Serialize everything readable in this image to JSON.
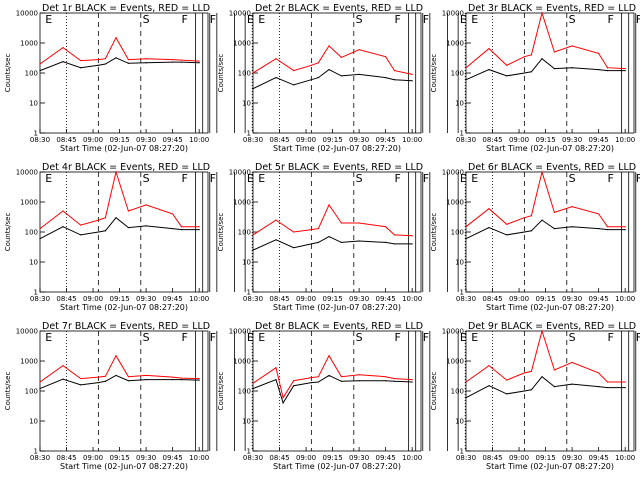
{
  "chart_data": [
    {
      "type": "line",
      "title": "Det 1r BLACK = Events, RED = LLD",
      "xlabel": "Start Time (02-Jun-07 08:27:20)",
      "ylabel": "Counts/sec",
      "x_tick_labels": [
        "08:30",
        "08:45",
        "09:00",
        "09:15",
        "09:30",
        "09:45",
        "10:00"
      ],
      "y_tick_labels": [
        "1",
        "10",
        "100",
        "1000",
        "10000"
      ],
      "ylim": [
        1,
        10000
      ],
      "y_scale": "log",
      "markers": [
        "E",
        "S",
        "F",
        "F",
        "E"
      ],
      "series": [
        {
          "name": "Events",
          "color": "#000000",
          "x": [
            "08:30",
            "08:43",
            "08:53",
            "09:03",
            "09:07",
            "09:13",
            "09:20",
            "09:30",
            "09:45",
            "09:50",
            "10:00"
          ],
          "y": [
            120,
            240,
            150,
            180,
            200,
            320,
            210,
            220,
            230,
            230,
            220
          ]
        },
        {
          "name": "LLD",
          "color": "#ff0000",
          "x": [
            "08:30",
            "08:43",
            "08:53",
            "09:03",
            "09:07",
            "09:13",
            "09:20",
            "09:30",
            "09:45",
            "09:50",
            "10:00"
          ],
          "y": [
            200,
            700,
            260,
            280,
            300,
            1500,
            280,
            300,
            280,
            270,
            250
          ]
        }
      ]
    },
    {
      "type": "line",
      "title": "Det 2r BLACK = Events, RED = LLD",
      "xlabel": "Start Time (02-Jun-07 08:27:20)",
      "ylabel": "Counts/sec",
      "x_tick_labels": [
        "08:30",
        "08:45",
        "09:00",
        "09:15",
        "09:30",
        "09:45",
        "10:00"
      ],
      "y_tick_labels": [
        "1",
        "10",
        "100",
        "1000",
        "10000"
      ],
      "ylim": [
        1,
        10000
      ],
      "y_scale": "log",
      "markers": [
        "E",
        "S",
        "F",
        "F",
        "E"
      ],
      "series": [
        {
          "name": "Events",
          "color": "#000000",
          "x": [
            "08:30",
            "08:43",
            "08:53",
            "09:03",
            "09:07",
            "09:13",
            "09:20",
            "09:30",
            "09:45",
            "09:50",
            "10:00"
          ],
          "y": [
            30,
            70,
            40,
            60,
            70,
            130,
            80,
            90,
            70,
            60,
            55
          ]
        },
        {
          "name": "LLD",
          "color": "#ff0000",
          "x": [
            "08:30",
            "08:43",
            "08:53",
            "09:03",
            "09:07",
            "09:13",
            "09:20",
            "09:30",
            "09:45",
            "09:50",
            "10:00"
          ],
          "y": [
            100,
            300,
            120,
            180,
            220,
            800,
            330,
            600,
            350,
            120,
            90
          ]
        }
      ]
    },
    {
      "type": "line",
      "title": "Det 3r BLACK = Events, RED = LLD",
      "xlabel": "Start Time (02-Jun-07 08:27:20)",
      "ylabel": "Counts/sec",
      "x_tick_labels": [
        "08:30",
        "08:45",
        "09:00",
        "09:15",
        "09:30",
        "09:45",
        "10:00"
      ],
      "y_tick_labels": [
        "1",
        "10",
        "100",
        "1000",
        "10000"
      ],
      "ylim": [
        1,
        10000
      ],
      "y_scale": "log",
      "markers": [
        "E",
        "S",
        "F",
        "F",
        "E"
      ],
      "series": [
        {
          "name": "Events",
          "color": "#000000",
          "x": [
            "08:30",
            "08:43",
            "08:53",
            "09:03",
            "09:07",
            "09:13",
            "09:20",
            "09:30",
            "09:45",
            "09:50",
            "10:00"
          ],
          "y": [
            60,
            130,
            80,
            100,
            110,
            300,
            140,
            150,
            130,
            120,
            120
          ]
        },
        {
          "name": "LLD",
          "color": "#ff0000",
          "x": [
            "08:30",
            "08:43",
            "08:53",
            "09:03",
            "09:07",
            "09:13",
            "09:20",
            "09:30",
            "09:45",
            "09:50",
            "10:00"
          ],
          "y": [
            150,
            650,
            180,
            350,
            400,
            10000,
            500,
            800,
            450,
            150,
            140
          ]
        }
      ]
    },
    {
      "type": "line",
      "title": "Det 4r BLACK = Events, RED = LLD",
      "xlabel": "Start Time (02-Jun-07 08:27:20)",
      "ylabel": "Counts/sec",
      "x_tick_labels": [
        "08:30",
        "08:45",
        "09:00",
        "09:15",
        "09:30",
        "09:45",
        "10:00"
      ],
      "y_tick_labels": [
        "1",
        "10",
        "100",
        "1000",
        "10000"
      ],
      "ylim": [
        1,
        10000
      ],
      "y_scale": "log",
      "markers": [
        "E",
        "S",
        "F",
        "F",
        "E"
      ],
      "series": [
        {
          "name": "Events",
          "color": "#000000",
          "x": [
            "08:30",
            "08:43",
            "08:53",
            "09:03",
            "09:07",
            "09:13",
            "09:20",
            "09:30",
            "09:45",
            "09:50",
            "10:00"
          ],
          "y": [
            60,
            150,
            80,
            100,
            110,
            300,
            140,
            160,
            130,
            120,
            120
          ]
        },
        {
          "name": "LLD",
          "color": "#ff0000",
          "x": [
            "08:30",
            "08:43",
            "08:53",
            "09:03",
            "09:07",
            "09:13",
            "09:20",
            "09:30",
            "09:45",
            "09:50",
            "10:00"
          ],
          "y": [
            130,
            500,
            170,
            250,
            300,
            10000,
            500,
            800,
            400,
            150,
            150
          ]
        }
      ]
    },
    {
      "type": "line",
      "title": "Det 5r BLACK = Events, RED = LLD",
      "xlabel": "Start Time (02-Jun-07 08:27:20)",
      "ylabel": "Counts/sec",
      "x_tick_labels": [
        "08:30",
        "08:45",
        "09:00",
        "09:15",
        "09:30",
        "09:45",
        "10:00"
      ],
      "y_tick_labels": [
        "1",
        "10",
        "100",
        "1000",
        "10000"
      ],
      "ylim": [
        1,
        10000
      ],
      "y_scale": "log",
      "markers": [
        "E",
        "S",
        "F",
        "F",
        "E"
      ],
      "series": [
        {
          "name": "Events",
          "color": "#000000",
          "x": [
            "08:30",
            "08:43",
            "08:53",
            "09:03",
            "09:07",
            "09:13",
            "09:20",
            "09:30",
            "09:45",
            "09:50",
            "10:00"
          ],
          "y": [
            25,
            55,
            30,
            40,
            45,
            70,
            45,
            50,
            45,
            40,
            40
          ]
        },
        {
          "name": "LLD",
          "color": "#ff0000",
          "x": [
            "08:30",
            "08:43",
            "08:53",
            "09:03",
            "09:07",
            "09:13",
            "09:20",
            "09:30",
            "09:45",
            "09:50",
            "10:00"
          ],
          "y": [
            80,
            250,
            100,
            120,
            130,
            800,
            200,
            200,
            150,
            80,
            75
          ]
        }
      ]
    },
    {
      "type": "line",
      "title": "Det 6r BLACK = Events, RED = LLD",
      "xlabel": "Start Time (02-Jun-07 08:27:20)",
      "ylabel": "Counts/sec",
      "x_tick_labels": [
        "08:30",
        "08:45",
        "09:00",
        "09:15",
        "09:30",
        "09:45",
        "10:00"
      ],
      "y_tick_labels": [
        "1",
        "10",
        "100",
        "1000",
        "10000"
      ],
      "ylim": [
        1,
        10000
      ],
      "y_scale": "log",
      "markers": [
        "E",
        "S",
        "F",
        "F",
        "E"
      ],
      "series": [
        {
          "name": "Events",
          "color": "#000000",
          "x": [
            "08:30",
            "08:43",
            "08:53",
            "09:03",
            "09:07",
            "09:13",
            "09:20",
            "09:30",
            "09:45",
            "09:50",
            "10:00"
          ],
          "y": [
            60,
            140,
            80,
            100,
            110,
            250,
            130,
            150,
            130,
            120,
            120
          ]
        },
        {
          "name": "LLD",
          "color": "#ff0000",
          "x": [
            "08:30",
            "08:43",
            "08:53",
            "09:03",
            "09:07",
            "09:13",
            "09:20",
            "09:30",
            "09:45",
            "09:50",
            "10:00"
          ],
          "y": [
            150,
            600,
            180,
            300,
            350,
            10000,
            450,
            700,
            400,
            150,
            150
          ]
        }
      ]
    },
    {
      "type": "line",
      "title": "Det 7r BLACK = Events, RED = LLD",
      "xlabel": "Start Time (02-Jun-07 08:27:20)",
      "ylabel": "Counts/sec",
      "x_tick_labels": [
        "08:30",
        "08:45",
        "09:00",
        "09:15",
        "09:30",
        "09:45",
        "10:00"
      ],
      "y_tick_labels": [
        "1",
        "10",
        "100",
        "1000",
        "10000"
      ],
      "ylim": [
        1,
        10000
      ],
      "y_scale": "log",
      "markers": [
        "E",
        "S",
        "F",
        "F",
        "E"
      ],
      "series": [
        {
          "name": "Events",
          "color": "#000000",
          "x": [
            "08:30",
            "08:43",
            "08:53",
            "09:03",
            "09:07",
            "09:13",
            "09:20",
            "09:30",
            "09:45",
            "09:50",
            "10:00"
          ],
          "y": [
            120,
            250,
            160,
            190,
            210,
            330,
            220,
            240,
            240,
            240,
            230
          ]
        },
        {
          "name": "LLD",
          "color": "#ff0000",
          "x": [
            "08:30",
            "08:43",
            "08:53",
            "09:03",
            "09:07",
            "09:13",
            "09:20",
            "09:30",
            "09:45",
            "09:50",
            "10:00"
          ],
          "y": [
            200,
            700,
            260,
            290,
            310,
            1500,
            300,
            330,
            290,
            270,
            260
          ]
        }
      ]
    },
    {
      "type": "line",
      "title": "Det 8r BLACK = Events, RED = LLD",
      "xlabel": "Start Time (02-Jun-07 08:27:20)",
      "ylabel": "Counts/sec",
      "x_tick_labels": [
        "08:30",
        "08:45",
        "09:00",
        "09:15",
        "09:30",
        "09:45",
        "10:00"
      ],
      "y_tick_labels": [
        "1",
        "10",
        "100",
        "1000",
        "10000"
      ],
      "ylim": [
        1,
        10000
      ],
      "y_scale": "log",
      "markers": [
        "E",
        "S",
        "F",
        "F",
        "E"
      ],
      "series": [
        {
          "name": "Events",
          "color": "#000000",
          "x": [
            "08:30",
            "08:43",
            "08:47",
            "08:53",
            "09:03",
            "09:07",
            "09:13",
            "09:20",
            "09:30",
            "09:45",
            "09:50",
            "10:00"
          ],
          "y": [
            120,
            240,
            40,
            150,
            190,
            200,
            330,
            210,
            220,
            220,
            210,
            200
          ]
        },
        {
          "name": "LLD",
          "color": "#ff0000",
          "x": [
            "08:30",
            "08:43",
            "08:47",
            "08:53",
            "09:03",
            "09:07",
            "09:13",
            "09:20",
            "09:30",
            "09:45",
            "09:50",
            "10:00"
          ],
          "y": [
            180,
            600,
            60,
            220,
            280,
            300,
            1500,
            300,
            350,
            300,
            260,
            240
          ]
        }
      ]
    },
    {
      "type": "line",
      "title": "Det 9r BLACK = Events, RED = LLD",
      "xlabel": "Start Time (02-Jun-07 08:27:20)",
      "ylabel": "Counts/sec",
      "x_tick_labels": [
        "08:30",
        "08:45",
        "09:00",
        "09:15",
        "09:30",
        "09:45",
        "10:00"
      ],
      "y_tick_labels": [
        "1",
        "10",
        "100",
        "1000",
        "10000"
      ],
      "ylim": [
        1,
        10000
      ],
      "y_scale": "log",
      "markers": [
        "E",
        "S",
        "F",
        "F",
        "E"
      ],
      "series": [
        {
          "name": "Events",
          "color": "#000000",
          "x": [
            "08:30",
            "08:43",
            "08:53",
            "09:03",
            "09:07",
            "09:13",
            "09:20",
            "09:30",
            "09:45",
            "09:50",
            "10:00"
          ],
          "y": [
            60,
            150,
            80,
            100,
            110,
            300,
            140,
            170,
            140,
            130,
            130
          ]
        },
        {
          "name": "LLD",
          "color": "#ff0000",
          "x": [
            "08:30",
            "08:43",
            "08:53",
            "09:03",
            "09:07",
            "09:13",
            "09:20",
            "09:30",
            "09:45",
            "09:50",
            "10:00"
          ],
          "y": [
            200,
            700,
            230,
            400,
            450,
            10000,
            500,
            900,
            400,
            200,
            200
          ]
        }
      ]
    }
  ]
}
